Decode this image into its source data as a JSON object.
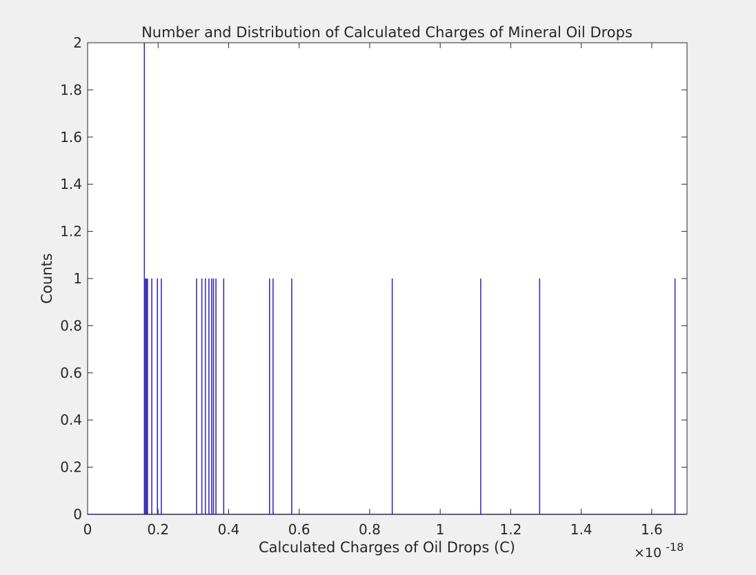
{
  "chart_data": {
    "type": "histogram",
    "title": "Number and Distribution of Calculated Charges of Mineral Oil Drops",
    "xlabel": "Calculated Charges of Oil Drops (C)",
    "ylabel": "Counts",
    "x_multiplier": {
      "base": "×10",
      "exponent": "-18"
    },
    "xlim": [
      0,
      1.7
    ],
    "ylim": [
      0,
      2
    ],
    "x_ticks": [
      0,
      0.2,
      0.4,
      0.6,
      0.8,
      1.0,
      1.2,
      1.4,
      1.6
    ],
    "x_tick_labels": [
      "0",
      "0.2",
      "0.4",
      "0.6",
      "0.8",
      "1",
      "1.2",
      "1.4",
      "1.6"
    ],
    "y_ticks": [
      0,
      0.2,
      0.4,
      0.6,
      0.8,
      1.0,
      1.2,
      1.4,
      1.6,
      1.8,
      2.0
    ],
    "y_tick_labels": [
      "0",
      "0.2",
      "0.4",
      "0.6",
      "0.8",
      "1",
      "1.2",
      "1.4",
      "1.6",
      "1.8",
      "2"
    ],
    "grid": false,
    "series_color": "#3a2db3",
    "bars": [
      {
        "x": 0.161,
        "count": 2
      },
      {
        "x": 0.164,
        "count": 1
      },
      {
        "x": 0.167,
        "count": 1
      },
      {
        "x": 0.17,
        "count": 1
      },
      {
        "x": 0.182,
        "count": 1
      },
      {
        "x": 0.198,
        "count": 1
      },
      {
        "x": 0.209,
        "count": 1
      },
      {
        "x": 0.309,
        "count": 1
      },
      {
        "x": 0.324,
        "count": 1
      },
      {
        "x": 0.334,
        "count": 1
      },
      {
        "x": 0.344,
        "count": 1
      },
      {
        "x": 0.352,
        "count": 1
      },
      {
        "x": 0.357,
        "count": 1
      },
      {
        "x": 0.364,
        "count": 1
      },
      {
        "x": 0.386,
        "count": 1
      },
      {
        "x": 0.516,
        "count": 1
      },
      {
        "x": 0.526,
        "count": 1
      },
      {
        "x": 0.579,
        "count": 1
      },
      {
        "x": 0.864,
        "count": 1
      },
      {
        "x": 1.115,
        "count": 1
      },
      {
        "x": 1.282,
        "count": 1
      },
      {
        "x": 1.666,
        "count": 1
      }
    ]
  }
}
